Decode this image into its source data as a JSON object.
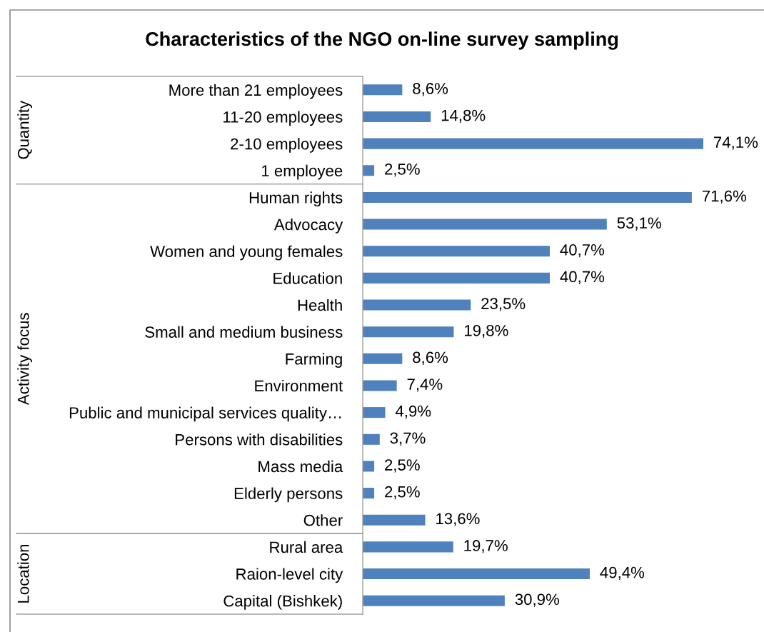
{
  "chart_data": [
    {
      "type": "bar",
      "orientation": "horizontal",
      "title": "Characteristics of the NGO on-line survey sampling",
      "ylabel": "Quantity",
      "categories": [
        "More than 21 employees",
        "11-20 employees",
        "2-10 employees",
        "1 employee"
      ],
      "values": [
        8.6,
        14.8,
        74.1,
        2.5
      ],
      "value_labels": [
        "8,6%",
        "14,8%",
        "74,1%",
        "2,5%"
      ],
      "color": "#4f81bd",
      "tick_labels": "y"
    },
    {
      "type": "bar",
      "orientation": "horizontal",
      "ylabel": "Activity focus",
      "categories": [
        "Human rights",
        "Advocacy",
        "Women and young females",
        "Education",
        "Health",
        "Small and medium business",
        "Farming",
        "Environment",
        "Public and municipal services quality…",
        "Persons with disabilities",
        "Mass media",
        "Elderly persons",
        "Other"
      ],
      "values": [
        71.6,
        53.1,
        40.7,
        40.7,
        23.5,
        19.8,
        8.6,
        7.4,
        4.9,
        3.7,
        2.5,
        2.5,
        13.6
      ],
      "value_labels": [
        "71,6%",
        "53,1%",
        "40,7%",
        "40,7%",
        "23,5%",
        "19,8%",
        "8,6%",
        "7,4%",
        "4,9%",
        "3,7%",
        "2,5%",
        "2,5%",
        "13,6%"
      ],
      "color": "#4f81bd",
      "tick_labels": "y"
    },
    {
      "type": "bar",
      "orientation": "horizontal",
      "ylabel": "Location",
      "categories": [
        "Rural area",
        "Raion-level city",
        "Capital (Bishkek)"
      ],
      "values": [
        19.7,
        49.4,
        30.9
      ],
      "value_labels": [
        "19,7%",
        "49,4%",
        "30,9%"
      ],
      "color": "#4f81bd",
      "tick_labels": "y"
    }
  ]
}
